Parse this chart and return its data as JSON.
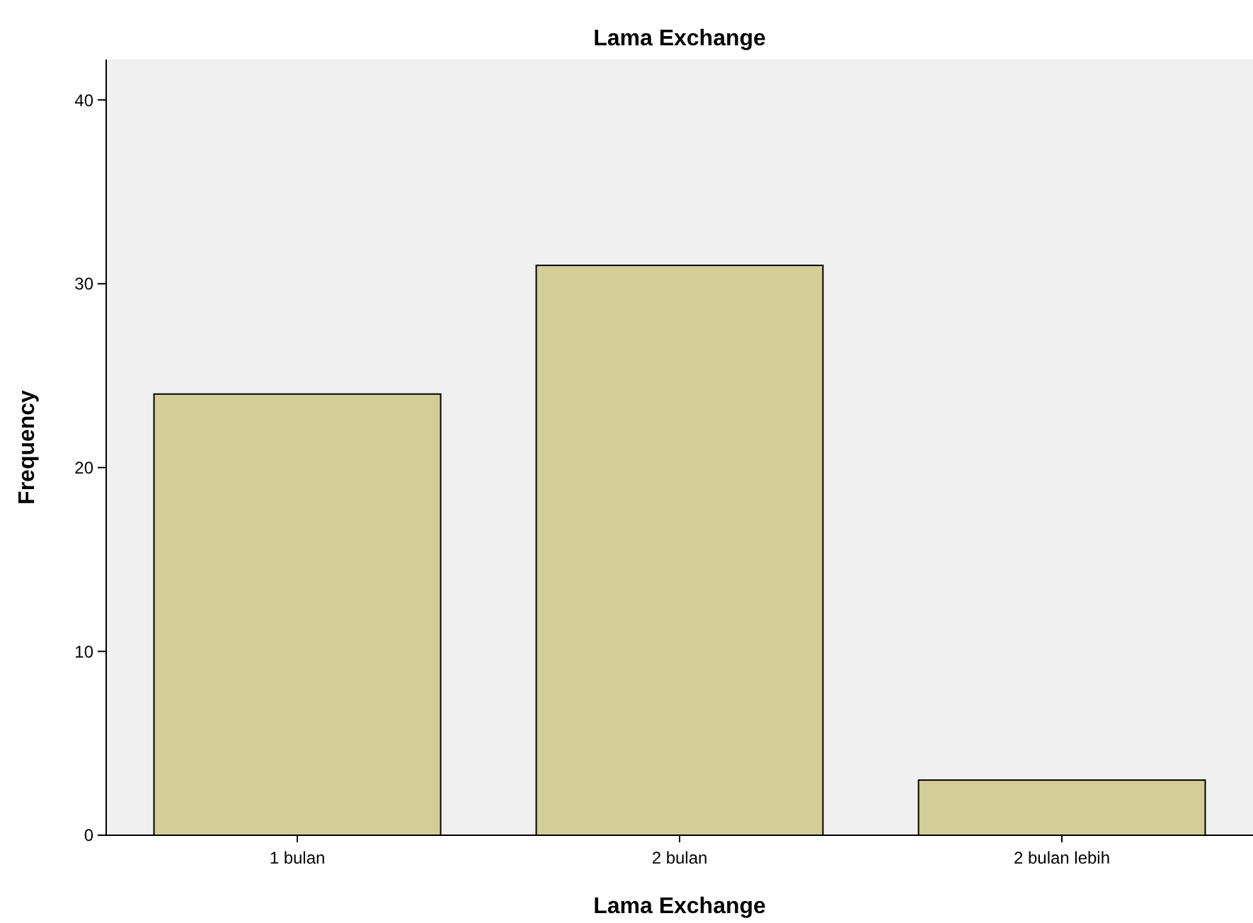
{
  "chart_data": {
    "type": "bar",
    "title": "Lama Exchange",
    "xlabel": "Lama Exchange",
    "ylabel": "Frequency",
    "categories": [
      "1 bulan",
      "2 bulan",
      "2 bulan lebih"
    ],
    "values": [
      24,
      31,
      3
    ],
    "color": "#d3ce97",
    "ylim": [
      0,
      42.2
    ],
    "yticks": [
      0,
      10,
      20,
      30,
      40
    ],
    "grid": false
  }
}
